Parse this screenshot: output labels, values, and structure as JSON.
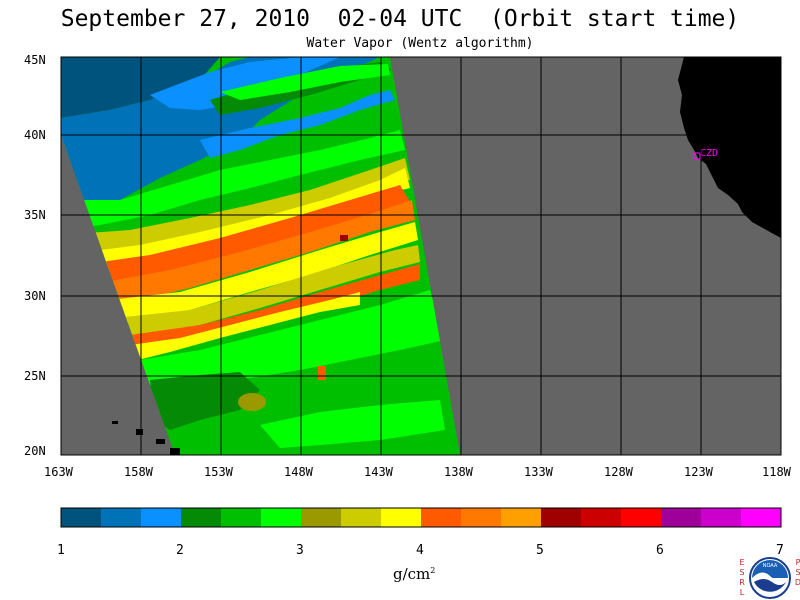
{
  "header": {
    "title": "September 27, 2010  02-04 UTC  (Orbit start time)",
    "subtitle": "Water Vapor (Wentz algorithm)"
  },
  "map": {
    "lat_labels": [
      "45N",
      "40N",
      "35N",
      "30N",
      "25N",
      "20N"
    ],
    "lon_labels": [
      "163W",
      "158W",
      "153W",
      "148W",
      "143W",
      "138W",
      "133W",
      "128W",
      "123W",
      "118W"
    ],
    "place_marker": "CZD",
    "colors": {
      "no_data": "#646464",
      "land": "#000000",
      "marker": "#ff00ff"
    }
  },
  "colorbar": {
    "tick_labels": [
      "1",
      "2",
      "3",
      "4",
      "5",
      "6",
      "7"
    ],
    "units_base": "g/cm",
    "units_exp": "2",
    "colors": [
      "#00537c",
      "#0073b8",
      "#0a90ff",
      "#048a04",
      "#00bf00",
      "#00ff00",
      "#9a9a00",
      "#cccc00",
      "#ffff00",
      "#ff5a00",
      "#ff7800",
      "#ffa000",
      "#a00000",
      "#cc0000",
      "#ff0000",
      "#a0009a",
      "#cc00cc",
      "#ff00ff"
    ]
  },
  "logo": {
    "left_letters": [
      "E",
      "S",
      "R",
      "L"
    ],
    "right_letters": [
      "P",
      "S",
      "D"
    ],
    "text": "NOAA"
  }
}
